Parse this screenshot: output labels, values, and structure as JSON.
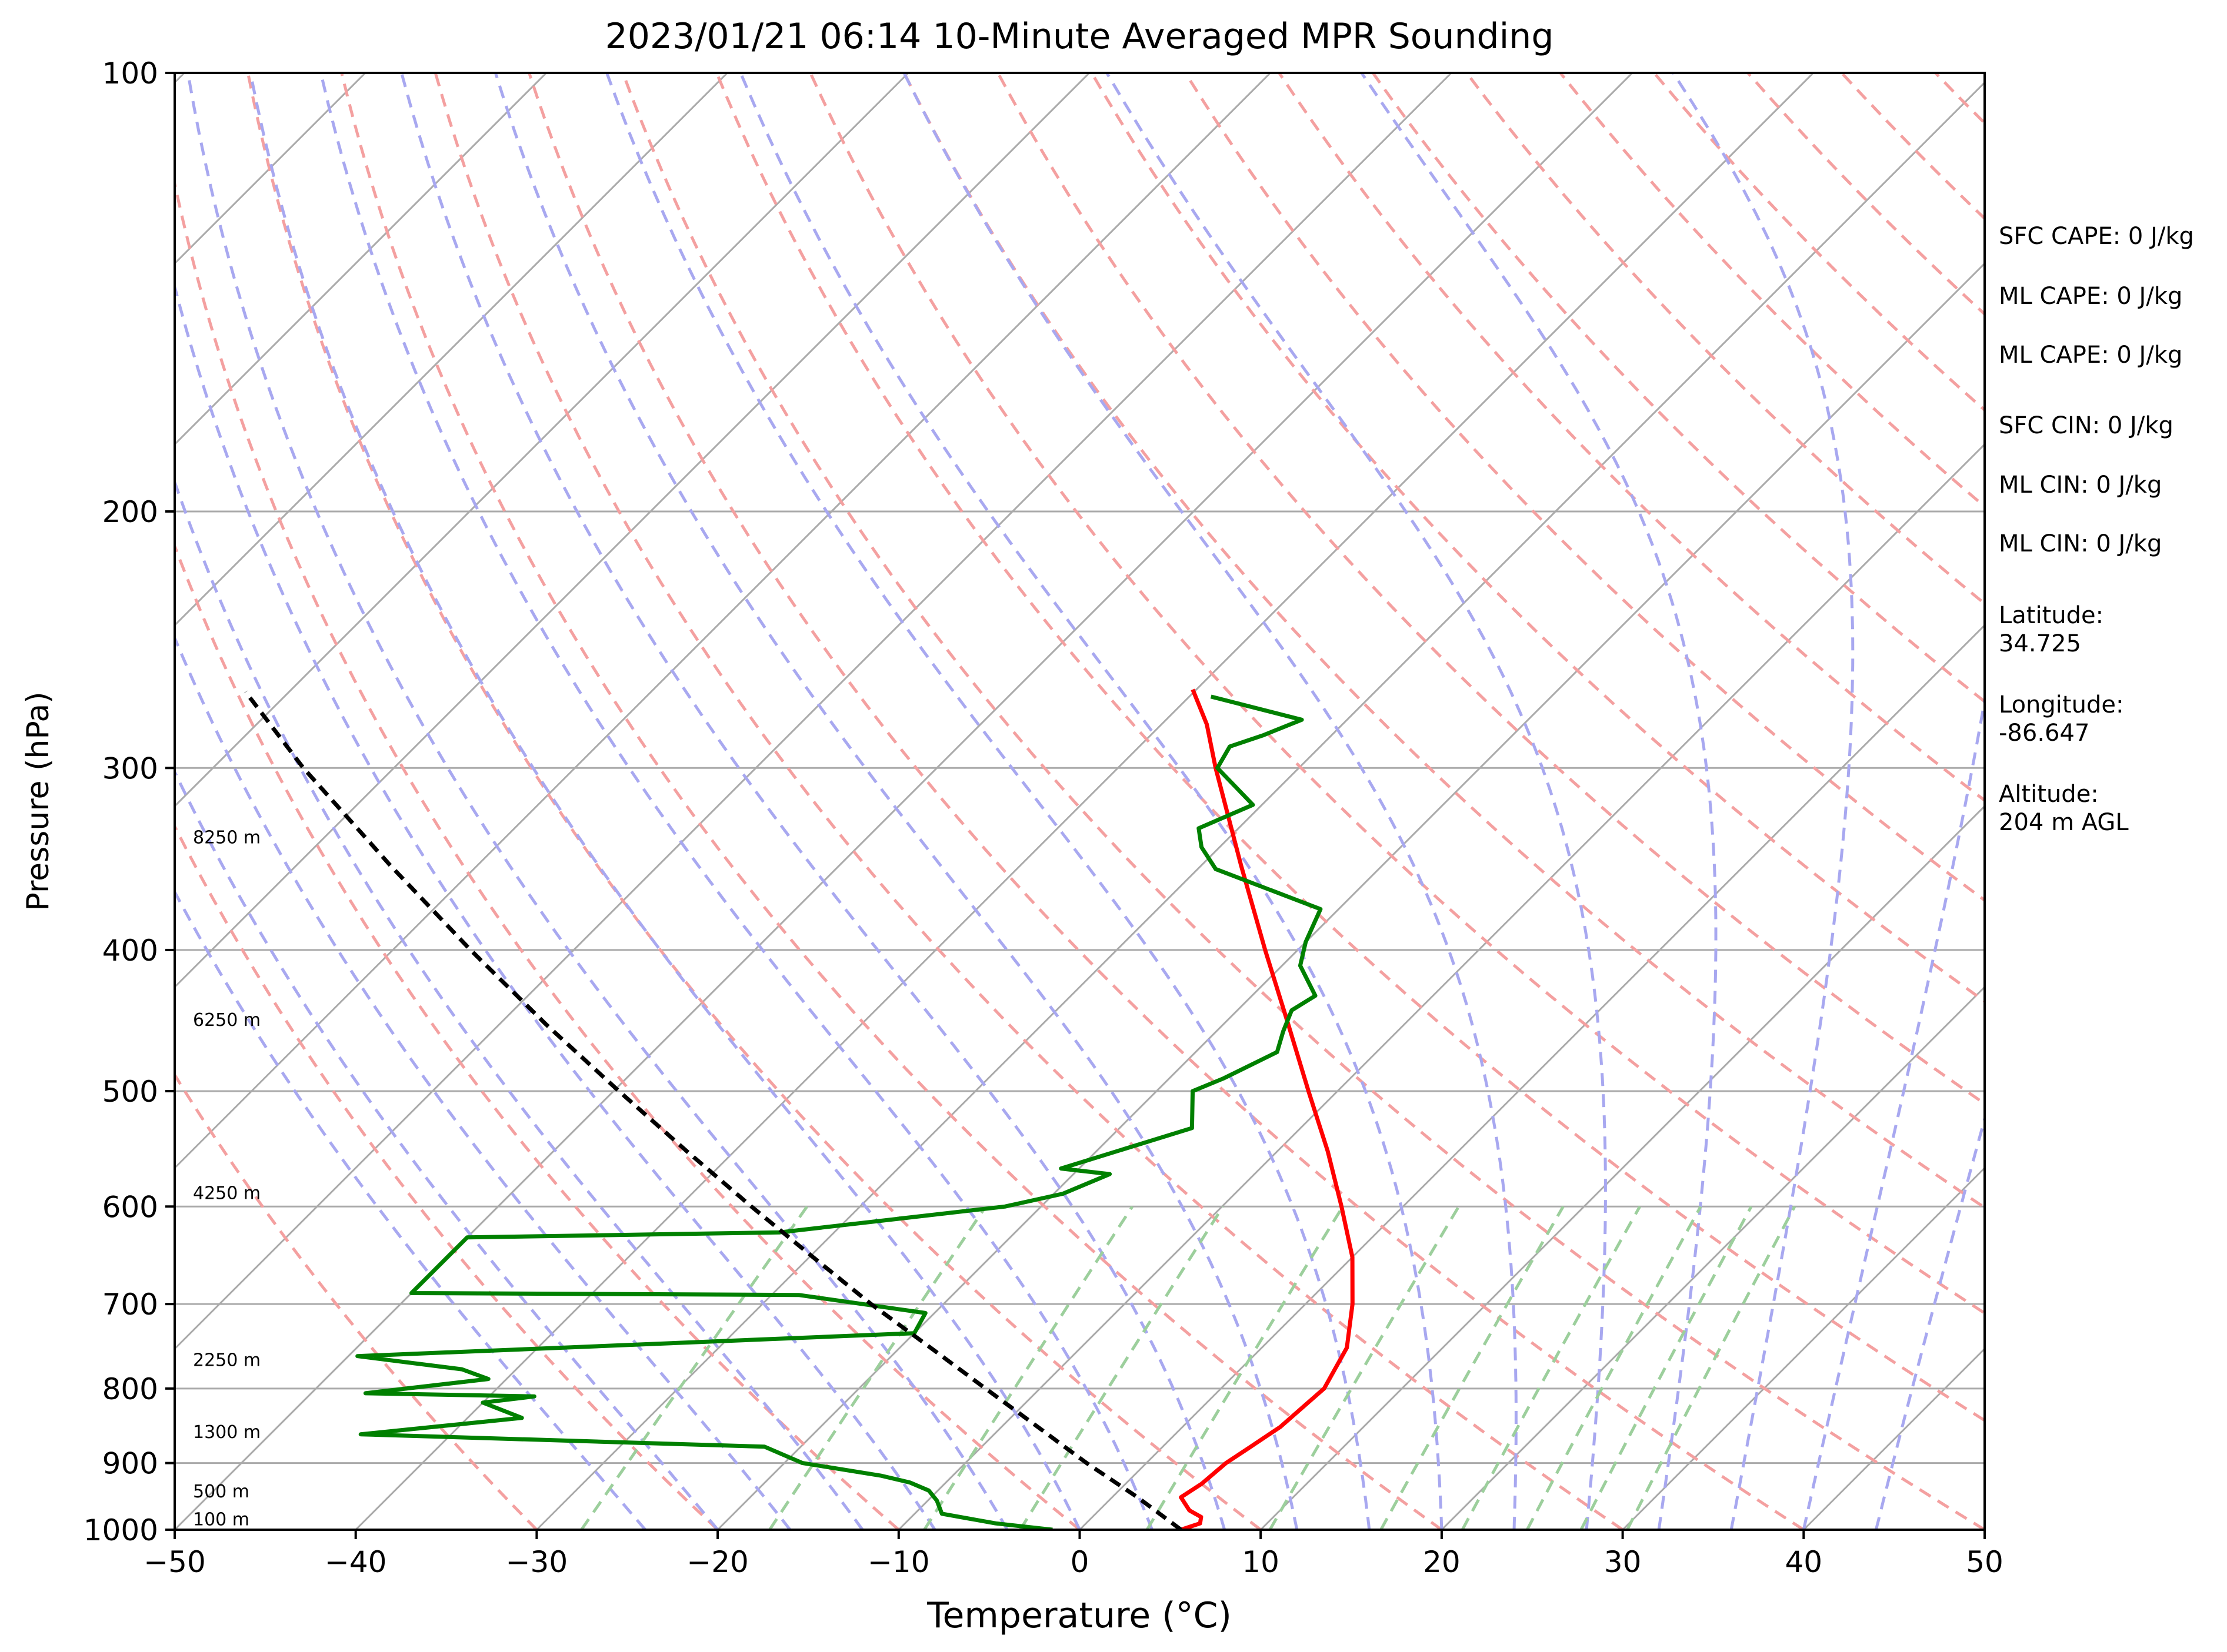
{
  "chart_data": {
    "type": "line",
    "title": "2023/01/21 06:14 10-Minute Averaged MPR Sounding",
    "xlabel": "Temperature (°C)",
    "ylabel": "Pressure (hPa)",
    "xlim": [
      -50,
      50
    ],
    "ylim": [
      1000,
      100
    ],
    "y_scale": "log",
    "skew": "skew-T log-p diagram",
    "grid": true,
    "x_ticks": [
      -50,
      -40,
      -30,
      -20,
      -10,
      0,
      10,
      20,
      30,
      40,
      50
    ],
    "x_tick_labels": [
      "−50",
      "−40",
      "−30",
      "−20",
      "−10",
      "0",
      "10",
      "20",
      "30",
      "40",
      "50"
    ],
    "y_ticks": [
      100,
      200,
      300,
      400,
      500,
      600,
      700,
      800,
      900,
      1000
    ],
    "y_tick_labels": [
      "100",
      "200",
      "300",
      "400",
      "500",
      "600",
      "700",
      "800",
      "900",
      "1000"
    ],
    "height_annotations": [
      {
        "p": 993,
        "label": "100 m"
      },
      {
        "p": 950,
        "label": "500 m"
      },
      {
        "p": 865,
        "label": "1300 m"
      },
      {
        "p": 772,
        "label": "2250 m"
      },
      {
        "p": 593,
        "label": "4250 m"
      },
      {
        "p": 451,
        "label": "6250 m"
      },
      {
        "p": 338,
        "label": "8250 m"
      }
    ],
    "side_text": [
      "SFC CAPE: 0 J/kg",
      "ML CAPE: 0 J/kg",
      "ML CAPE: 0 J/kg",
      "SFC CIN: 0 J/kg",
      "ML CIN: 0 J/kg",
      "ML CIN: 0 J/kg",
      "Latitude:\n34.725",
      "Longitude:\n-86.647",
      "Altitude:\n204 m AGL"
    ],
    "colors": {
      "temperature": "#ff0000",
      "dewpoint": "#008000",
      "parcel": "#000000",
      "isotherms": "#aaaaaa",
      "dry_adiabats": "#f4a0a0",
      "moist_adiabats": "#a8a8f0",
      "mixing_ratio": "#9ccf9c"
    },
    "series": [
      {
        "role": "temperature",
        "points": [
          [
            1000,
            5.6
          ],
          [
            990,
            6.3
          ],
          [
            980,
            6.0
          ],
          [
            970,
            5.0
          ],
          [
            950,
            3.8
          ],
          [
            930,
            4.2
          ],
          [
            900,
            4.4
          ],
          [
            880,
            4.8
          ],
          [
            850,
            5.4
          ],
          [
            800,
            5.7
          ],
          [
            750,
            4.7
          ],
          [
            700,
            2.6
          ],
          [
            650,
            0.0
          ],
          [
            600,
            -3.4
          ],
          [
            550,
            -7.2
          ],
          [
            500,
            -11.6
          ],
          [
            450,
            -16.4
          ],
          [
            400,
            -21.8
          ],
          [
            350,
            -27.8
          ],
          [
            300,
            -34.6
          ],
          [
            280,
            -37.5
          ],
          [
            265,
            -40.2
          ]
        ]
      },
      {
        "role": "dewpoint",
        "points": [
          [
            1000,
            -1.5
          ],
          [
            990,
            -5.0
          ],
          [
            975,
            -8.5
          ],
          [
            955,
            -9.5
          ],
          [
            940,
            -10.5
          ],
          [
            928,
            -12.0
          ],
          [
            918,
            -14.0
          ],
          [
            900,
            -19.0
          ],
          [
            877,
            -22.0
          ],
          [
            860,
            -45.0
          ],
          [
            838,
            -37.0
          ],
          [
            818,
            -40.0
          ],
          [
            810,
            -37.5
          ],
          [
            806,
            -47.0
          ],
          [
            788,
            -41.0
          ],
          [
            776,
            -43.0
          ],
          [
            760,
            -49.5
          ],
          [
            733,
            -20.0
          ],
          [
            710,
            -20.5
          ],
          [
            690,
            -28.5
          ],
          [
            688,
            -50.0
          ],
          [
            630,
            -50.0
          ],
          [
            625,
            -33.0
          ],
          [
            600,
            -22.0
          ],
          [
            588,
            -19.5
          ],
          [
            570,
            -18.0
          ],
          [
            565,
            -21.0
          ],
          [
            530,
            -16.0
          ],
          [
            500,
            -18.0
          ],
          [
            490,
            -17.0
          ],
          [
            470,
            -15.5
          ],
          [
            455,
            -16.3
          ],
          [
            440,
            -17.0
          ],
          [
            430,
            -16.5
          ],
          [
            410,
            -19.0
          ],
          [
            395,
            -20.0
          ],
          [
            375,
            -21.0
          ],
          [
            352,
            -29.0
          ],
          [
            340,
            -31.0
          ],
          [
            330,
            -32.2
          ],
          [
            318,
            -30.5
          ],
          [
            300,
            -34.5
          ],
          [
            290,
            -35.0
          ],
          [
            285,
            -33.8
          ],
          [
            278,
            -32.5
          ],
          [
            268,
            -38.8
          ]
        ]
      },
      {
        "role": "parcel",
        "points": [
          [
            1000,
            5.6
          ],
          [
            950,
            1.4
          ],
          [
            900,
            -3.3
          ],
          [
            850,
            -8.0
          ],
          [
            800,
            -13.0
          ],
          [
            750,
            -18.3
          ],
          [
            700,
            -24.0
          ],
          [
            650,
            -29.8
          ],
          [
            600,
            -36.0
          ],
          [
            550,
            -42.6
          ],
          [
            500,
            -49.7
          ],
          [
            450,
            -57.4
          ],
          [
            400,
            -65.7
          ],
          [
            350,
            -74.8
          ],
          [
            300,
            -85.0
          ],
          [
            266,
            -92.4
          ]
        ]
      }
    ]
  }
}
